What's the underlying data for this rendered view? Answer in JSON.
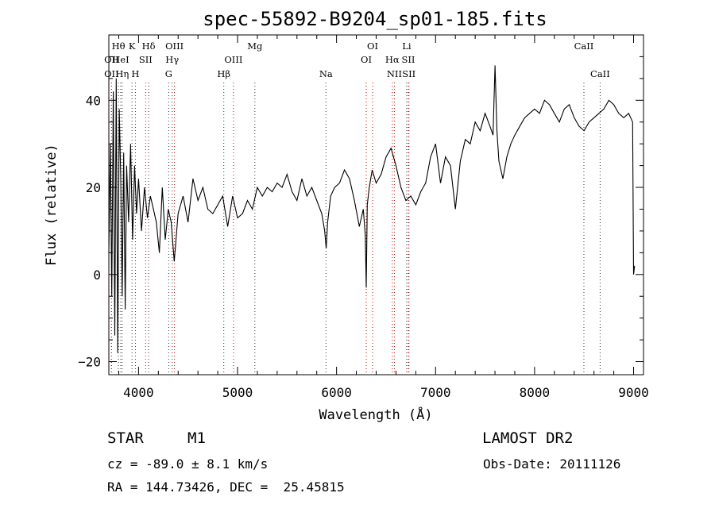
{
  "title": "spec-55892-B9204_sp01-185.fits",
  "info": {
    "class_label": "STAR",
    "subclass_label": "M1",
    "survey": "LAMOST DR2",
    "cz": "cz = -89.0 ± 8.1 km/s",
    "obs_date": "Obs-Date: 20111126",
    "radec": "RA = 144.73426, DEC =  25.45815"
  },
  "colors": {
    "spectrum": "#000000",
    "emission_line": "#cc0000",
    "absorption_line": "#333333",
    "frame": "#000000"
  },
  "chart_data": {
    "type": "line",
    "title": "spec-55892-B9204_sp01-185.fits",
    "xlabel": "Wavelength (Å)",
    "ylabel": "Flux (relative)",
    "xlim": [
      3700,
      9100
    ],
    "ylim": [
      -23,
      55
    ],
    "xticks": [
      4000,
      5000,
      6000,
      7000,
      8000,
      9000
    ],
    "yticks": [
      -20,
      0,
      20,
      40
    ],
    "grid": false,
    "series": [
      {
        "x": [
          3700,
          3715,
          3730,
          3745,
          3760,
          3775,
          3790,
          3805,
          3820,
          3835,
          3850,
          3865,
          3880,
          3900,
          3920,
          3940,
          3960,
          3980,
          4000,
          4030,
          4060,
          4090,
          4120,
          4150,
          4180,
          4210,
          4240,
          4270,
          4300,
          4330,
          4360,
          4400,
          4450,
          4500,
          4550,
          4600,
          4650,
          4700,
          4750,
          4800,
          4850,
          4900,
          4950,
          5000,
          5050,
          5100,
          5150,
          5200,
          5250,
          5300,
          5350,
          5400,
          5450,
          5500,
          5550,
          5600,
          5650,
          5700,
          5750,
          5800,
          5850,
          5880,
          5895,
          5910,
          5940,
          5980,
          6030,
          6080,
          6130,
          6180,
          6230,
          6270,
          6290,
          6300,
          6310,
          6330,
          6360,
          6400,
          6450,
          6500,
          6550,
          6600,
          6650,
          6700,
          6750,
          6800,
          6850,
          6900,
          6950,
          7000,
          7050,
          7100,
          7150,
          7200,
          7250,
          7300,
          7350,
          7400,
          7450,
          7500,
          7550,
          7580,
          7600,
          7620,
          7640,
          7680,
          7720,
          7760,
          7800,
          7850,
          7900,
          7950,
          8000,
          8050,
          8100,
          8150,
          8200,
          8250,
          8300,
          8350,
          8400,
          8450,
          8500,
          8550,
          8600,
          8650,
          8700,
          8750,
          8800,
          8850,
          8900,
          8950,
          8990,
          9000,
          9010
        ],
        "values": [
          5,
          30,
          -5,
          42,
          -14,
          45,
          -18,
          38,
          22,
          -5,
          28,
          -8,
          25,
          12,
          30,
          8,
          25,
          14,
          22,
          10,
          20,
          13,
          18,
          15,
          12,
          5,
          20,
          8,
          15,
          12,
          3,
          14,
          18,
          12,
          22,
          17,
          20,
          15,
          14,
          16,
          18,
          11,
          18,
          13,
          14,
          17,
          15,
          20,
          18,
          20,
          19,
          21,
          20,
          23,
          19,
          17,
          22,
          18,
          20,
          17,
          14,
          10,
          6,
          12,
          18,
          20,
          21,
          24,
          22,
          17,
          11,
          15,
          9,
          -3,
          16,
          20,
          24,
          21,
          23,
          27,
          29,
          25,
          20,
          17,
          18,
          16,
          19,
          21,
          27,
          30,
          21,
          27,
          25,
          15,
          26,
          31,
          30,
          35,
          33,
          37,
          34,
          32,
          48,
          33,
          26,
          22,
          27,
          30,
          32,
          34,
          36,
          37,
          38,
          37,
          40,
          39,
          37,
          35,
          38,
          39,
          36,
          34,
          33,
          35,
          36,
          37,
          38,
          40,
          39,
          37,
          36,
          37,
          35,
          0,
          2
        ]
      }
    ]
  },
  "lines": [
    {
      "name": "OII",
      "wave": 3727,
      "row": 1,
      "type": "emission",
      "label": "OII"
    },
    {
      "name": "OII",
      "wave": 3727,
      "row": 2,
      "type": "emission",
      "label": "OII"
    },
    {
      "name": "Hθ",
      "wave": 3797,
      "row": 0,
      "type": "absorption",
      "label": "Hθ"
    },
    {
      "name": "HeI",
      "wave": 3820,
      "row": 1,
      "type": "absorption",
      "label": "HeI"
    },
    {
      "name": "Hη",
      "wave": 3835,
      "row": 2,
      "type": "absorption",
      "label": "Hη"
    },
    {
      "name": "K",
      "wave": 3934,
      "row": 0,
      "type": "absorption",
      "label": "K"
    },
    {
      "name": "SII",
      "wave": 4072,
      "row": 1,
      "type": "emission",
      "label": "SII"
    },
    {
      "name": "H",
      "wave": 3968,
      "row": 2,
      "type": "absorption",
      "label": "H"
    },
    {
      "name": "Hδ",
      "wave": 4102,
      "row": 0,
      "type": "absorption",
      "label": "Hδ"
    },
    {
      "name": "OIII",
      "wave": 4363,
      "row": 0,
      "type": "emission",
      "label": "OIII"
    },
    {
      "name": "Hγ",
      "wave": 4340,
      "row": 1,
      "type": "absorption",
      "label": "Hγ"
    },
    {
      "name": "G",
      "wave": 4305,
      "row": 2,
      "type": "absorption",
      "label": "G"
    },
    {
      "name": "Mg",
      "wave": 5175,
      "row": 0,
      "type": "absorption",
      "label": "Mg"
    },
    {
      "name": "OIII",
      "wave": 4959,
      "row": 1,
      "type": "emission",
      "label": "OIII"
    },
    {
      "name": "Hβ",
      "wave": 4861,
      "row": 2,
      "type": "absorption",
      "label": "Hβ"
    },
    {
      "name": "Na",
      "wave": 5893,
      "row": 2,
      "type": "absorption",
      "label": "Na"
    },
    {
      "name": "OI",
      "wave": 6364,
      "row": 0,
      "type": "emission",
      "label": "OI"
    },
    {
      "name": "OI",
      "wave": 6300,
      "row": 1,
      "type": "emission",
      "label": "OI"
    },
    {
      "name": "Li",
      "wave": 6708,
      "row": 0,
      "type": "absorption",
      "label": "Li"
    },
    {
      "name": "Hα",
      "wave": 6563,
      "row": 1,
      "type": "emission",
      "label": "Hα"
    },
    {
      "name": "SII",
      "wave": 6725,
      "row": 1,
      "type": "emission",
      "label": "SII"
    },
    {
      "name": "NII",
      "wave": 6584,
      "row": 2,
      "type": "emission",
      "label": "NII"
    },
    {
      "name": "SII",
      "wave": 6731,
      "row": 2,
      "type": "emission",
      "label": "SII"
    },
    {
      "name": "CaII",
      "wave": 8498,
      "row": 0,
      "type": "absorption",
      "label": "CaII"
    },
    {
      "name": "CaII",
      "wave": 8662,
      "row": 2,
      "type": "absorption",
      "label": "CaII"
    }
  ]
}
